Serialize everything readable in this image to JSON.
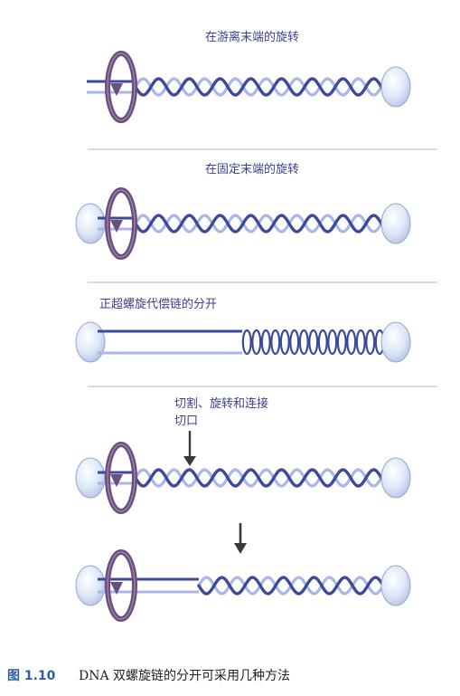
{
  "panels": [
    {
      "title": "在游离末端的旋转"
    },
    {
      "title": "在固定末端的旋转"
    },
    {
      "title": "正超螺旋代偿链的分开"
    },
    {
      "title": "切割、旋转和连接",
      "nick_label": "切口"
    }
  ],
  "caption": {
    "number": "图 1.10",
    "text": "DNA 双螺旋链的分开可采用几种方法"
  },
  "colors": {
    "strand_dark": "#3c4a9c",
    "strand_light": "#aab6e6",
    "cap_fill": "#dfe8f8",
    "cap_stroke": "#9aa6cc",
    "rotor": "#6b4e7e",
    "arrow": "#3a3a3a",
    "divider": "#b5b5b5",
    "text": "#3b3f8f",
    "caption_num": "#2d5f9e"
  },
  "icons": {
    "rotation": "circular-rotation-arrow-icon",
    "down_arrow": "down-arrow-icon"
  }
}
